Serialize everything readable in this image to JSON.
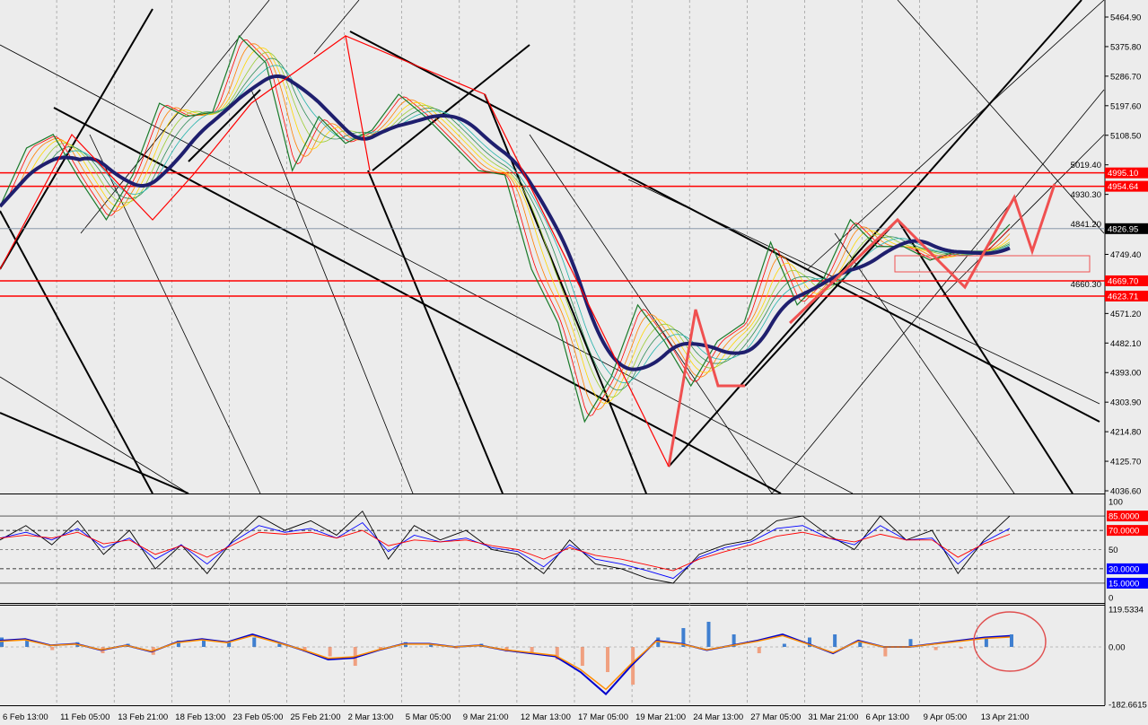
{
  "chart_data": [
    {
      "type": "line",
      "pane": "price",
      "y_ticks": [
        "5464.90",
        "5375.80",
        "5286.70",
        "5197.60",
        "5108.50",
        "5019.40",
        "4930.30",
        "4841.20",
        "4749.40",
        "4660.30",
        "4571.20",
        "4482.10",
        "4393.00",
        "4303.90",
        "4214.80",
        "4125.70",
        "4036.60"
      ],
      "ylim": [
        4036.6,
        5464.9
      ],
      "x_ticks": [
        "6 Feb 13:00",
        "11 Feb 05:00",
        "13 Feb 21:00",
        "18 Feb 13:00",
        "23 Feb 05:00",
        "25 Feb 21:00",
        "2 Mar 13:00",
        "5 Mar 05:00",
        "9 Mar 21:00",
        "12 Mar 13:00",
        "17 Mar 05:00",
        "19 Mar 21:00",
        "24 Mar 13:00",
        "27 Mar 05:00",
        "31 Mar 21:00",
        "6 Apr 13:00",
        "9 Apr 05:00",
        "13 Apr 21:00"
      ],
      "price_path": [
        4894,
        5070,
        5111,
        4975,
        4854,
        4989,
        5205,
        5165,
        5178,
        5408,
        5327,
        5002,
        5165,
        5084,
        5124,
        5232,
        5165,
        5084,
        5002,
        4989,
        4705,
        4543,
        4245,
        4380,
        4597,
        4488,
        4353,
        4488,
        4543,
        4786,
        4597,
        4678,
        4854,
        4773,
        4773,
        4732,
        4759,
        4759,
        4840
      ],
      "levels": [
        {
          "label": "4995.10",
          "value": 4995.1,
          "color": "#ff0000"
        },
        {
          "label": "4954.64",
          "value": 4954.64,
          "color": "#ff0000"
        },
        {
          "label": "4669.70",
          "value": 4669.7,
          "color": "#ff0000"
        },
        {
          "label": "4623.71",
          "value": 4623.71,
          "color": "#ff0000"
        }
      ],
      "current_price": {
        "label": "4826.95",
        "value": 4826.95,
        "color": "#000000"
      },
      "ma_color": "#1f1f6e",
      "grid": true
    },
    {
      "type": "line",
      "pane": "oscillator",
      "ylim": [
        0,
        100
      ],
      "y_ticks": [
        "100",
        "50",
        "0"
      ],
      "levels": [
        {
          "label": "85.0000",
          "value": 85,
          "color": "#ff0000"
        },
        {
          "label": "70.0000",
          "value": 70,
          "color": "#ff0000"
        },
        {
          "label": "30.0000",
          "value": 30,
          "color": "#0000ff"
        },
        {
          "label": "15.0000",
          "value": 15,
          "color": "#0000ff"
        }
      ],
      "series": [
        {
          "color": "#000000",
          "values": [
            60,
            75,
            55,
            80,
            45,
            70,
            30,
            55,
            25,
            60,
            85,
            70,
            80,
            65,
            90,
            40,
            75,
            60,
            70,
            50,
            45,
            25,
            60,
            35,
            30,
            20,
            15,
            45,
            55,
            60,
            80,
            85,
            65,
            50,
            85,
            60,
            70,
            25,
            60,
            85
          ]
        },
        {
          "color": "#0000ff",
          "values": [
            62,
            68,
            60,
            72,
            52,
            62,
            40,
            55,
            35,
            58,
            75,
            68,
            72,
            62,
            78,
            48,
            65,
            58,
            62,
            52,
            48,
            32,
            55,
            40,
            35,
            28,
            20,
            42,
            52,
            58,
            72,
            75,
            62,
            55,
            75,
            60,
            62,
            35,
            58,
            72
          ]
        },
        {
          "color": "#ff0000",
          "values": [
            62,
            65,
            62,
            68,
            56,
            60,
            45,
            54,
            42,
            55,
            68,
            66,
            68,
            62,
            70,
            54,
            60,
            58,
            60,
            54,
            50,
            40,
            52,
            44,
            40,
            34,
            28,
            40,
            48,
            55,
            64,
            68,
            62,
            58,
            66,
            60,
            60,
            42,
            56,
            66
          ]
        }
      ]
    },
    {
      "type": "bar",
      "pane": "macd",
      "ylim": [
        -182.6615,
        119.5334
      ],
      "y_ticks": [
        "119.5334",
        "0.00",
        "-182.6615"
      ],
      "histogram": [
        30,
        25,
        -10,
        15,
        -20,
        10,
        -25,
        20,
        25,
        15,
        30,
        10,
        -15,
        -30,
        -60,
        -10,
        15,
        10,
        -5,
        10,
        -15,
        -20,
        -40,
        -60,
        -80,
        -120,
        30,
        60,
        80,
        40,
        -20,
        10,
        30,
        40,
        20,
        -30,
        25,
        -10,
        -5,
        30,
        40
      ],
      "signal": [
        20,
        25,
        5,
        10,
        -10,
        5,
        -15,
        15,
        25,
        15,
        40,
        15,
        -10,
        -40,
        -35,
        -10,
        10,
        10,
        0,
        5,
        -10,
        -20,
        -30,
        -80,
        -150,
        -60,
        20,
        10,
        -10,
        5,
        20,
        40,
        10,
        -20,
        20,
        0,
        0,
        10,
        20,
        30,
        35
      ],
      "series_colors": {
        "histogram_pos": "#3f7fd0",
        "histogram_neg": "#f0a080",
        "line": "#ff8c00",
        "signal": "#0000cc"
      }
    }
  ],
  "annotations": {
    "circle_color": "#e05050",
    "arrow_color": "#f05050"
  }
}
